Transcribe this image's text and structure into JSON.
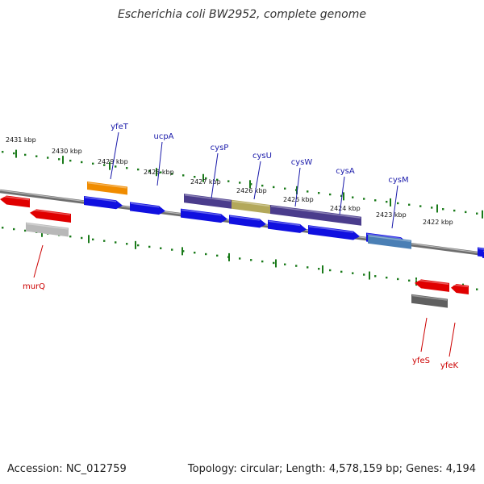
{
  "title": "Escherichia coli BW2952, complete genome",
  "footer": {
    "accession": "Accession: NC_012759",
    "summary": "Topology: circular; Length: 4,578,159 bp; Genes: 4,194"
  },
  "colors": {
    "forward_cds": "#1010e0",
    "reverse_cds": "#e00000",
    "tick": "#1a7a1a",
    "backbone": "#888888",
    "label_forward": "#1a1aaa",
    "label_reverse": "#cc0000"
  },
  "scale_labels": [
    "2431 kbp",
    "2430 kbp",
    "2429 kbp",
    "2428 kbp",
    "2427 kbp",
    "2426 kbp",
    "2425 kbp",
    "2424 kbp",
    "2423 kbp",
    "2422 kbp"
  ],
  "gene_labels": {
    "forward": [
      "yfeT",
      "ucpA",
      "cysP",
      "cysU",
      "cysW",
      "cysA",
      "cysM"
    ],
    "reverse": [
      "murQ",
      "yfeS",
      "yfeK"
    ]
  }
}
